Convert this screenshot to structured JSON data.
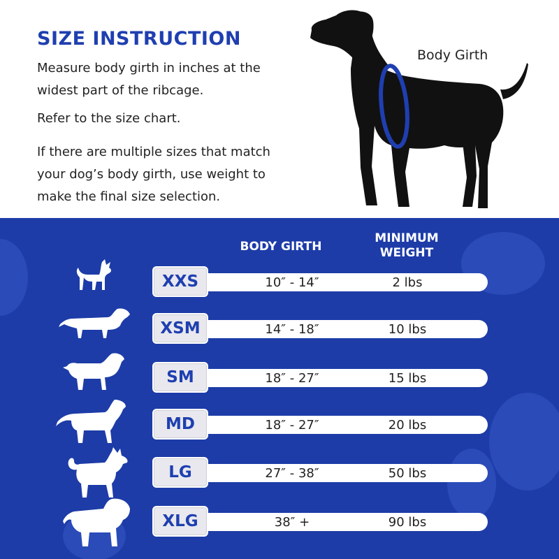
{
  "header": {
    "title": "SIZE INSTRUCTION",
    "paragraph_1": "Measure body girth in inches at the widest part of the ribcage.",
    "paragraph_2": "Refer to the size chart.",
    "paragraph_3": "If there are multiple sizes that match your dog’s body girth, use weight to make the final size selection.",
    "girth_label": "Body Girth"
  },
  "colors": {
    "brand_blue": "#1f3fb0",
    "panel_blue": "#1d3ca8",
    "dog_black": "#111111"
  },
  "table": {
    "header_girth": "BODY GIRTH",
    "header_weight": "MINIMUM WEIGHT",
    "rows": [
      {
        "size": "XXS",
        "girth": "10″ - 14″",
        "weight": "2 lbs",
        "icon": "chihuahua-icon"
      },
      {
        "size": "XSM",
        "girth": "14″ - 18″",
        "weight": "10 lbs",
        "icon": "dachshund-icon"
      },
      {
        "size": "SM",
        "girth": "18″ - 27″",
        "weight": "15 lbs",
        "icon": "beagle-icon"
      },
      {
        "size": "MD",
        "girth": "18″ - 27″",
        "weight": "20 lbs",
        "icon": "labrador-icon"
      },
      {
        "size": "LG",
        "girth": "27″ - 38″",
        "weight": "50 lbs",
        "icon": "husky-icon"
      },
      {
        "size": "XLG",
        "girth": "38″ +",
        "weight": "90 lbs",
        "icon": "mastiff-icon"
      }
    ]
  }
}
